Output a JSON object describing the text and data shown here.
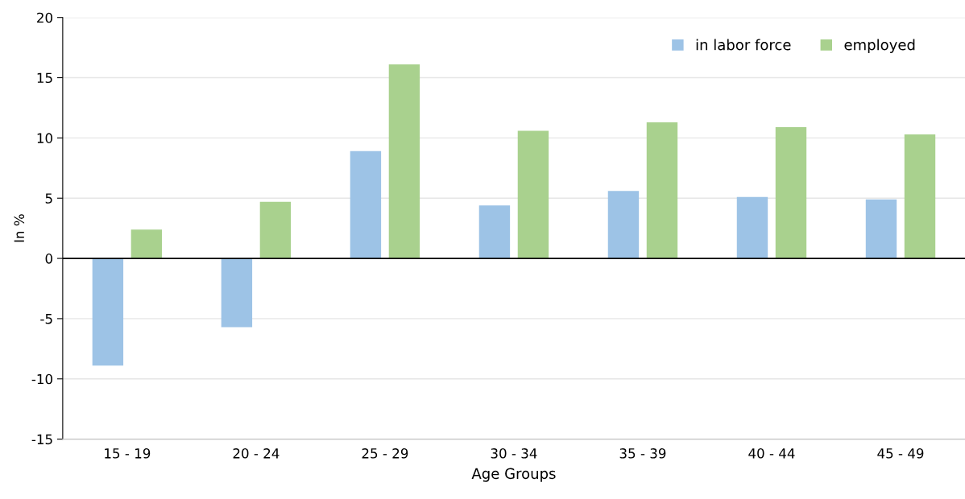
{
  "chart_data": {
    "type": "bar",
    "xlabel": "Age Groups",
    "ylabel": "In %",
    "categories": [
      "15 - 19",
      "20 - 24",
      "25 - 29",
      "30 - 34",
      "35 - 39",
      "40 - 44",
      "45 - 49"
    ],
    "series": [
      {
        "name": "in labor force",
        "color": "#9dc3e6",
        "values": [
          -8.9,
          -5.7,
          8.9,
          4.4,
          5.6,
          5.1,
          4.9
        ]
      },
      {
        "name": "employed",
        "color": "#a9d18e",
        "values": [
          2.4,
          4.7,
          16.1,
          10.6,
          11.3,
          10.9,
          10.3
        ]
      }
    ],
    "ylim": [
      -15,
      20
    ],
    "yticks": [
      -15,
      -10,
      -5,
      0,
      5,
      10,
      15,
      20
    ],
    "ref_lines": [
      {
        "axis": "y",
        "value": 0,
        "color": "#000000"
      }
    ],
    "grid": "y",
    "legend": "top right"
  }
}
